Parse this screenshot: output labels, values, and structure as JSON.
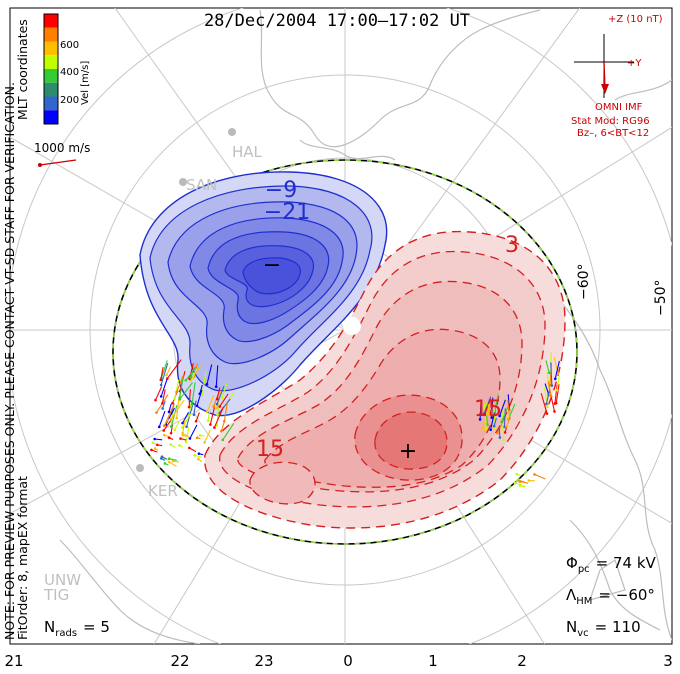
{
  "title": "28/Dec/2004 17:00–17:02 UT",
  "side_note_1": "NOTE: FOR PREVIEW PURPOSES ONLY. PLEASE CONTACT VT-SD STAFF FOR VERIFICATION.",
  "side_note_2": "FitOrder: 8, mapEX format",
  "coordinates": "MLT coordinates",
  "colorbar": {
    "label": "Vel [m/s]",
    "ticks": [
      "600",
      "400",
      "200"
    ],
    "colors": [
      "#ff0000",
      "#ff7f00",
      "#ffbf00",
      "#bfff00",
      "#33cc33",
      "#2d8c6e",
      "#3366cc",
      "#0000ff"
    ]
  },
  "vector_scale": "1000 m/s",
  "imf": {
    "z_label": "+Z (10 nT)",
    "y_label": "+Y",
    "source": "OMNI IMF",
    "model": "Stat Mod: RG96",
    "condition": "Bz–, 6<BT<12"
  },
  "stats": {
    "phi_pc_symbol": "Φ",
    "phi_pc_sub": "pc",
    "phi_pc_value": "= 74 kV",
    "lambda_symbol": "Λ",
    "lambda_sub": "HM",
    "lambda_value": "= −60°",
    "nvc_symbol": "N",
    "nvc_sub": "vc",
    "nvc_value": "= 110",
    "nrads_symbol": "N",
    "nrads_sub": "rads",
    "nrads_value": "= 5"
  },
  "lat_labels": [
    "−60°",
    "−50°"
  ],
  "mlt_labels": [
    "21",
    "22",
    "23",
    "0",
    "1",
    "2",
    "3"
  ],
  "stations": [
    "HAL",
    "SAN",
    "KER",
    "UNW",
    "TIG"
  ],
  "contour_labels": [
    "−9",
    "−21",
    "−",
    "3",
    "15",
    "15",
    "+"
  ],
  "colors": {
    "negative_cell": "#1f2fcf",
    "positive_cell": "#d42020",
    "imf_vector": "#cc0000",
    "annotation_red": "#cc0000"
  }
}
